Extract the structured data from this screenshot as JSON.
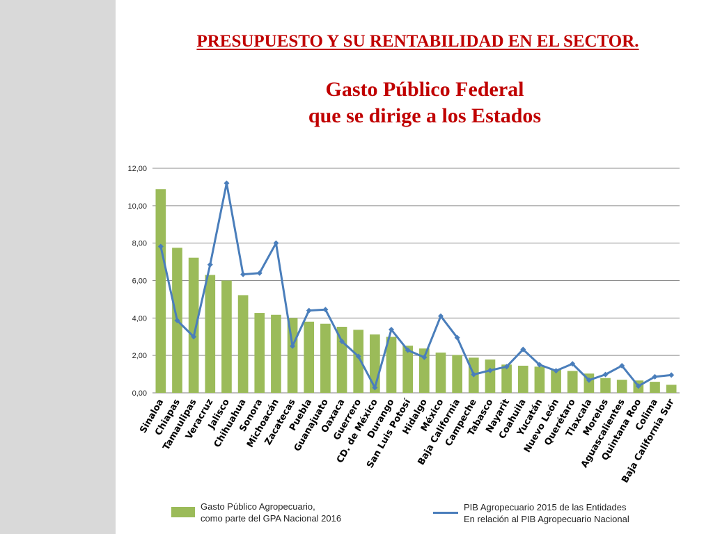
{
  "slide": {
    "title": "PRESUPUESTO Y SU RENTABILIDAD EN EL SECTOR.",
    "heading_line1": "Gasto Público Federal",
    "heading_line2": "que se dirige a los Estados"
  },
  "chart_data": {
    "type": "bar",
    "categories": [
      "Sinaloa",
      "Chiapas",
      "Tamaulipas",
      "Veracruz",
      "Jalisco",
      "Chihuahua",
      "Sonora",
      "Michoacán",
      "Zacatecas",
      "Puebla",
      "Guanajuato",
      "Oaxaca",
      "Guerrero",
      "CD. de México",
      "Durango",
      "San Luis Potosí",
      "Hidalgo",
      "México",
      "Baja California",
      "Campeche",
      "Tabasco",
      "Nayarit",
      "Coahuila",
      "Yucatán",
      "Nuevo León",
      "Querétaro",
      "Tlaxcala",
      "Morelos",
      "Aguascalientes",
      "Quintana Roo",
      "Colima",
      "Baja California Sur"
    ],
    "series": [
      {
        "name": "Gasto Público Agropecuario, como parte del GPA Nacional 2016",
        "type": "bar",
        "color": "#9bbb59",
        "values": [
          10.88,
          7.75,
          7.22,
          6.3,
          6.0,
          5.22,
          4.27,
          4.17,
          4.0,
          3.8,
          3.69,
          3.53,
          3.37,
          3.12,
          2.99,
          2.52,
          2.37,
          2.15,
          2.02,
          1.88,
          1.78,
          1.51,
          1.45,
          1.4,
          1.25,
          1.17,
          1.03,
          0.79,
          0.7,
          0.66,
          0.59,
          0.43
        ]
      },
      {
        "name": "PIB Agropecuario 2015 de las Entidades En relación al PIB Agropecuario Nacional",
        "type": "line",
        "color": "#4a7ebb",
        "values": [
          7.82,
          3.87,
          3.0,
          6.85,
          11.2,
          6.33,
          6.4,
          8.0,
          2.5,
          4.4,
          4.45,
          2.75,
          1.95,
          0.28,
          3.38,
          2.28,
          1.9,
          4.1,
          2.95,
          0.98,
          1.2,
          1.4,
          2.32,
          1.5,
          1.18,
          1.55,
          0.68,
          0.98,
          1.45,
          0.36,
          0.86,
          0.95
        ]
      }
    ],
    "ylim": [
      0,
      12
    ],
    "yticks": [
      "0,00",
      "2,00",
      "4,00",
      "6,00",
      "8,00",
      "10,00",
      "12,00"
    ],
    "grid": true,
    "legend_position": "bottom"
  },
  "legend": {
    "bar_line1": "Gasto Público Agropecuario,",
    "bar_line2": "como parte del GPA Nacional 2016",
    "line_line1": "PIB Agropecuario 2015 de las Entidades",
    "line_line2": "En relación al PIB Agropecuario Nacional"
  }
}
